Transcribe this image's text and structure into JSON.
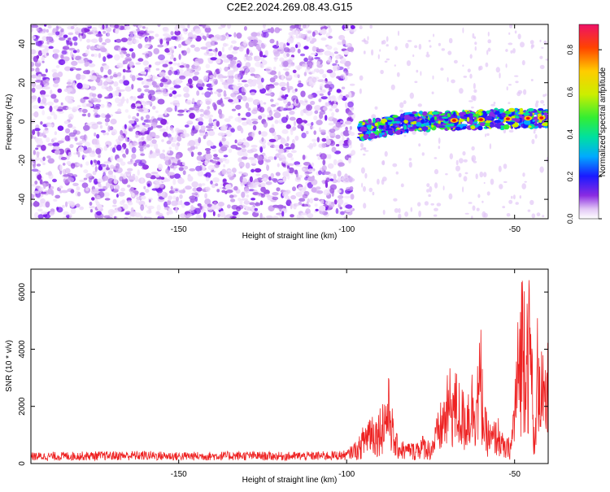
{
  "title": "C2E2.2024.269.08.43.G15",
  "chart_data": [
    {
      "type": "heatmap",
      "title": "C2E2.2024.269.08.43.G15",
      "xlabel": "Height of straight line (km)",
      "ylabel": "Frequency (Hz)",
      "xlim": [
        -194,
        -40
      ],
      "ylim": [
        -50,
        50
      ],
      "xticks": [
        -150,
        -100,
        -50
      ],
      "yticks": [
        -40,
        -20,
        0,
        20,
        40
      ],
      "features": {
        "noise_region_x": [
          -194,
          -98
        ],
        "signal_band_x": [
          -96,
          -40
        ],
        "signal_center_freq": [
          -5,
          0,
          2
        ],
        "signal_center_freq_at_x": [
          -96,
          -80,
          -40
        ],
        "peak_amplitude_locations_x": [
          -68,
          -60,
          -52,
          -46,
          -42
        ]
      },
      "colorbar": {
        "label": "Normalized spectral amplitude",
        "range": [
          0,
          0.92
        ],
        "ticks": [
          0.0,
          0.2,
          0.4,
          0.6,
          0.8
        ],
        "tick_labels": [
          "0.0",
          "0.2",
          "0.4",
          "0.6",
          "0.8"
        ]
      }
    },
    {
      "type": "line",
      "xlabel": "Height of straight line (km)",
      "ylabel": "SNR (10 * v/v)",
      "xlim": [
        -194,
        -40
      ],
      "ylim": [
        0,
        6800
      ],
      "xticks": [
        -150,
        -100,
        -50
      ],
      "yticks": [
        0,
        2000,
        4000,
        6000
      ],
      "color": "#ee2222",
      "series": [
        {
          "name": "SNR",
          "x": [
            -194,
            -180,
            -170,
            -160,
            -150,
            -140,
            -130,
            -120,
            -110,
            -100,
            -97,
            -95,
            -93,
            -91,
            -89,
            -87,
            -86,
            -85,
            -83,
            -81,
            -79,
            -77,
            -75,
            -73,
            -71,
            -69,
            -67,
            -65,
            -63,
            -61,
            -60,
            -59,
            -57,
            -55,
            -53,
            -51,
            -49,
            -48,
            -47,
            -46,
            -45,
            -44,
            -43,
            -42,
            -41,
            -40
          ],
          "values": [
            280,
            300,
            310,
            320,
            290,
            300,
            310,
            290,
            300,
            330,
            600,
            1200,
            1800,
            1500,
            2200,
            2800,
            1100,
            900,
            700,
            500,
            800,
            900,
            700,
            1500,
            2300,
            3100,
            2800,
            2200,
            2900,
            3400,
            4200,
            1800,
            1200,
            1500,
            700,
            900,
            4500,
            6200,
            6700,
            6100,
            5200,
            300,
            5600,
            3900,
            2700,
            3900
          ]
        }
      ]
    }
  ]
}
